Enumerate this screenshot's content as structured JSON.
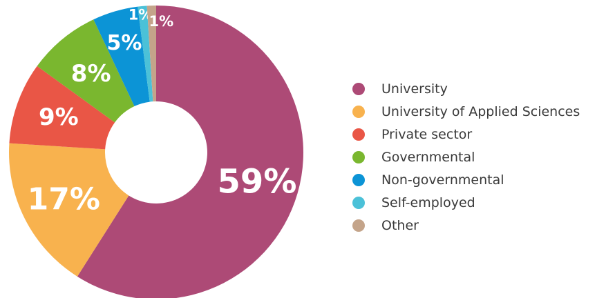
{
  "chart_data": {
    "type": "pie",
    "title": "",
    "legend_position": "right",
    "categories": [
      "University",
      "University of Applied Sciences",
      "Private sector",
      "Governmental",
      "Non-governmental",
      "Self-employed",
      "Other"
    ],
    "values": [
      59,
      17,
      9,
      8,
      5,
      1,
      1
    ],
    "labels": [
      "59%",
      "17%",
      "9%",
      "8%",
      "5%",
      "1%",
      "1%"
    ],
    "colors": [
      "#ad4a76",
      "#f8b24e",
      "#e95646",
      "#7ab72f",
      "#0c94d6",
      "#4bc1d8",
      "#c4a48a"
    ]
  }
}
